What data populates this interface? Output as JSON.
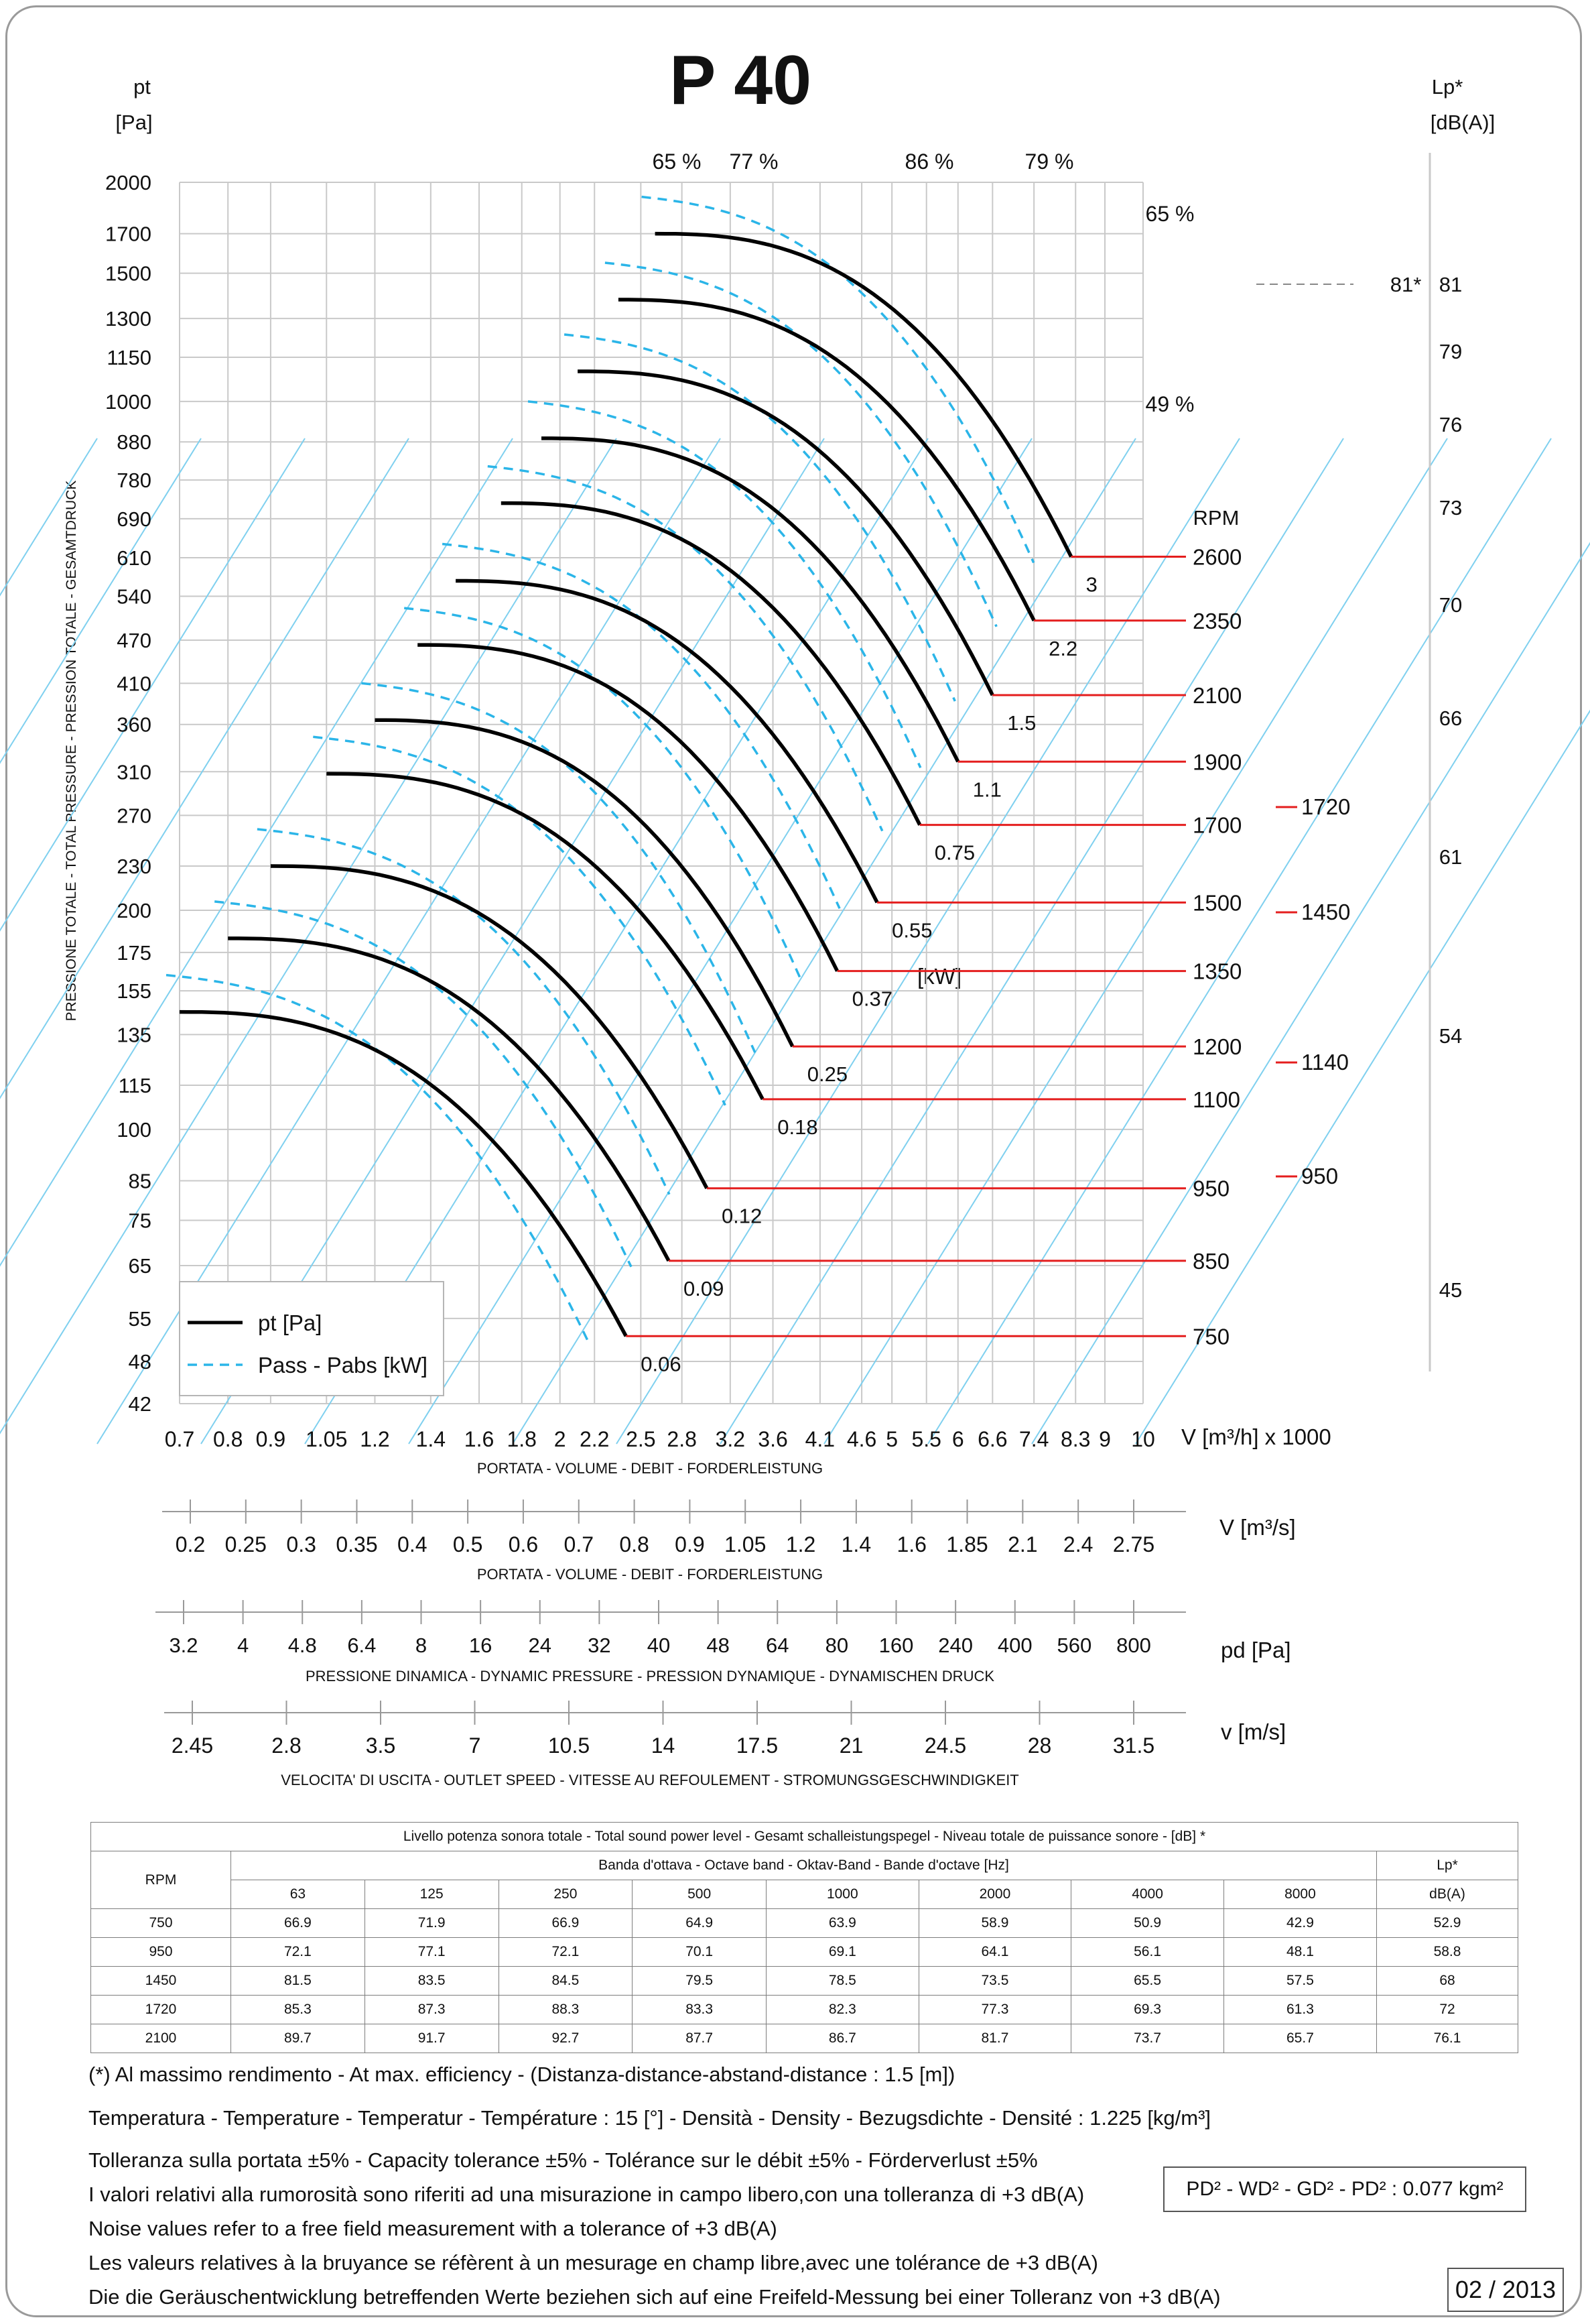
{
  "title": "P 40",
  "y_axis": {
    "unit_top": "pt",
    "unit_bottom": "[Pa]",
    "label": "PRESSIONE TOTALE - TOTAL PRESSURE - PRESSION TOTALE - GESAMTDRUCK",
    "ticks": [
      2000,
      1700,
      1500,
      1300,
      1150,
      1000,
      880,
      780,
      690,
      610,
      540,
      470,
      410,
      360,
      310,
      270,
      230,
      200,
      175,
      155,
      135,
      115,
      100,
      85,
      75,
      65,
      55,
      48,
      42
    ]
  },
  "right_axis": {
    "unit_top": "Lp*",
    "unit_bottom": "[dB(A)]",
    "ticks": [
      81,
      79,
      76,
      73,
      70,
      66,
      61,
      54,
      45
    ],
    "max_marker": "81*"
  },
  "x_axes": {
    "volume_m3h": {
      "unit": "V [m³/h]  x 1000",
      "label": "PORTATA - VOLUME - DEBIT - FORDERLEISTUNG",
      "ticks": [
        "0.7",
        "0.8",
        "0.9",
        "1.05",
        "1.2",
        "1.4",
        "1.6",
        "1.8",
        "2",
        "2.2",
        "2.5",
        "2.8",
        "3.2",
        "3.6",
        "4.1",
        "4.6",
        "5",
        "5.5",
        "6",
        "6.6",
        "7.4",
        "8.3",
        "9",
        "10"
      ]
    },
    "volume_m3s": {
      "unit": "V  [m³/s]",
      "label": "PORTATA - VOLUME - DEBIT - FORDERLEISTUNG",
      "ticks": [
        "0.2",
        "0.25",
        "0.3",
        "0.35",
        "0.4",
        "0.5",
        "0.6",
        "0.7",
        "0.8",
        "0.9",
        "1.05",
        "1.2",
        "1.4",
        "1.6",
        "1.85",
        "2.1",
        "2.4",
        "2.75"
      ]
    },
    "dynamic_pressure": {
      "unit": "pd  [Pa]",
      "label": "PRESSIONE DINAMICA - DYNAMIC PRESSURE - PRESSION DYNAMIQUE - DYNAMISCHEN DRUCK",
      "ticks": [
        "3.2",
        "4",
        "4.8",
        "6.4",
        "8",
        "16",
        "24",
        "32",
        "40",
        "48",
        "64",
        "80",
        "160",
        "240",
        "400",
        "560",
        "800"
      ]
    },
    "outlet_speed": {
      "unit": "v  [m/s]",
      "label": "VELOCITA' DI USCITA - OUTLET SPEED - VITESSE AU REFOULEMENT - STROMUNGSGESCHWINDIGKEIT",
      "ticks": [
        "2.45",
        "2.8",
        "3.5",
        "7",
        "10.5",
        "14",
        "17.5",
        "21",
        "24.5",
        "28",
        "31.5"
      ]
    }
  },
  "efficiency_labels": [
    "65 %",
    "77 %",
    "86 %",
    "79 %",
    "65 %",
    "49 %"
  ],
  "rpm_header": "RPM",
  "power_unit": "[kW]",
  "legend": {
    "pt": "pt [Pa]",
    "pass": "Pass - Pabs [kW]"
  },
  "chart_data": {
    "type": "line",
    "x_scale": "log",
    "y_scale": "log",
    "x_unit": "m³/h x 1000",
    "y_unit": "Pa",
    "curves": [
      {
        "rpm": "750",
        "power_kw": "0.06",
        "pt_start": [
          0.7,
          145
        ],
        "pt_end": [
          2.4,
          52
        ]
      },
      {
        "rpm": "850",
        "power_kw": "0.09",
        "pt_start": [
          0.8,
          183
        ],
        "pt_end": [
          2.7,
          66
        ]
      },
      {
        "rpm": "950",
        "power_kw": "0.12",
        "pt_start": [
          0.9,
          230
        ],
        "pt_end": [
          3.0,
          83
        ]
      },
      {
        "rpm": "1100",
        "power_kw": "0.18",
        "pt_start": [
          1.05,
          308
        ],
        "pt_end": [
          3.5,
          110
        ]
      },
      {
        "rpm": "1200",
        "power_kw": "0.25",
        "pt_start": [
          1.2,
          365
        ],
        "pt_end": [
          3.8,
          130
        ]
      },
      {
        "rpm": "1350",
        "power_kw": "0.37",
        "pt_start": [
          1.35,
          463
        ],
        "pt_end": [
          4.3,
          165
        ]
      },
      {
        "rpm": "1500",
        "power_kw": "0.55",
        "pt_start": [
          1.5,
          567
        ],
        "pt_end": [
          4.8,
          205
        ]
      },
      {
        "rpm": "1700",
        "power_kw": "0.75",
        "pt_start": [
          1.7,
          725
        ],
        "pt_end": [
          5.4,
          262
        ]
      },
      {
        "rpm": "1900",
        "power_kw": "1.1",
        "pt_start": [
          1.9,
          890
        ],
        "pt_end": [
          6.0,
          320
        ]
      },
      {
        "rpm": "2100",
        "power_kw": "1.5",
        "pt_start": [
          2.1,
          1100
        ],
        "pt_end": [
          6.6,
          395
        ]
      },
      {
        "rpm": "2350",
        "power_kw": "2.2",
        "pt_start": [
          2.35,
          1380
        ],
        "pt_end": [
          7.4,
          500
        ]
      },
      {
        "rpm": "2600",
        "power_kw": "3",
        "pt_start": [
          2.6,
          1700
        ],
        "pt_end": [
          8.2,
          612
        ]
      }
    ],
    "sound_rpm_marks": [
      "1720",
      "1450",
      "1140",
      "950"
    ]
  },
  "sound_table": {
    "title": "Livello potenza sonora totale - Total sound power level - Gesamt schalleistungspegel - Niveau totale de puissance sonore - [dB]   *",
    "band_header": "Banda d'ottava - Octave band - Oktav-Band - Bande d'octave [Hz]",
    "rpm_header": "RPM",
    "lp_header": "Lp*",
    "lp_unit": "dB(A)",
    "bands": [
      "63",
      "125",
      "250",
      "500",
      "1000",
      "2000",
      "4000",
      "8000"
    ],
    "rows": [
      {
        "rpm": "750",
        "values": [
          "66.9",
          "71.9",
          "66.9",
          "64.9",
          "63.9",
          "58.9",
          "50.9",
          "42.9"
        ],
        "lp": "52.9"
      },
      {
        "rpm": "950",
        "values": [
          "72.1",
          "77.1",
          "72.1",
          "70.1",
          "69.1",
          "64.1",
          "56.1",
          "48.1"
        ],
        "lp": "58.8"
      },
      {
        "rpm": "1450",
        "values": [
          "81.5",
          "83.5",
          "84.5",
          "79.5",
          "78.5",
          "73.5",
          "65.5",
          "57.5"
        ],
        "lp": "68"
      },
      {
        "rpm": "1720",
        "values": [
          "85.3",
          "87.3",
          "88.3",
          "83.3",
          "82.3",
          "77.3",
          "69.3",
          "61.3"
        ],
        "lp": "72"
      },
      {
        "rpm": "2100",
        "values": [
          "89.7",
          "91.7",
          "92.7",
          "87.7",
          "86.7",
          "81.7",
          "73.7",
          "65.7"
        ],
        "lp": "76.1"
      }
    ]
  },
  "notes": {
    "efficiency": "(*) Al massimo rendimento - At max. efficiency - (Distanza-distance-abstand-distance : 1.5 [m])",
    "temperature": "Temperatura - Temperature - Temperatur - Température : 15 [°]  -  Densità - Density - Bezugsdichte - Densité : 1.225 [kg/m³]",
    "tolerance": "Tolleranza sulla portata  ±5% - Capacity tolerance ±5% - Tolérance sur le débit ±5% - Förderverlust ±5%",
    "noise_it": "I valori relativi alla rumorosità sono riferiti ad una misurazione in campo libero,con una tolleranza di +3 dB(A)",
    "noise_en": "Noise values refer to a free field measurement with a tolerance of +3 dB(A)",
    "noise_fr": "Les valeurs relatives à la bruyance se réfèrent à un mesurage en champ libre,avec une tolérance de +3 dB(A)",
    "noise_de": "Die die Geräuschentwicklung betreffenden Werte beziehen sich auf eine Freifeld-Messung bei einer Tolleranz von +3 dB(A)"
  },
  "inertia": "PD² -  WD² - GD² -  PD²  :  0.077 kgm²",
  "date": "02 / 2013",
  "colors": {
    "curve": "#000000",
    "power": "#2bb5e8",
    "rpm_line": "#e41e1e",
    "grid": "#c9c9c9",
    "efficiency": "#7fd0ef"
  }
}
